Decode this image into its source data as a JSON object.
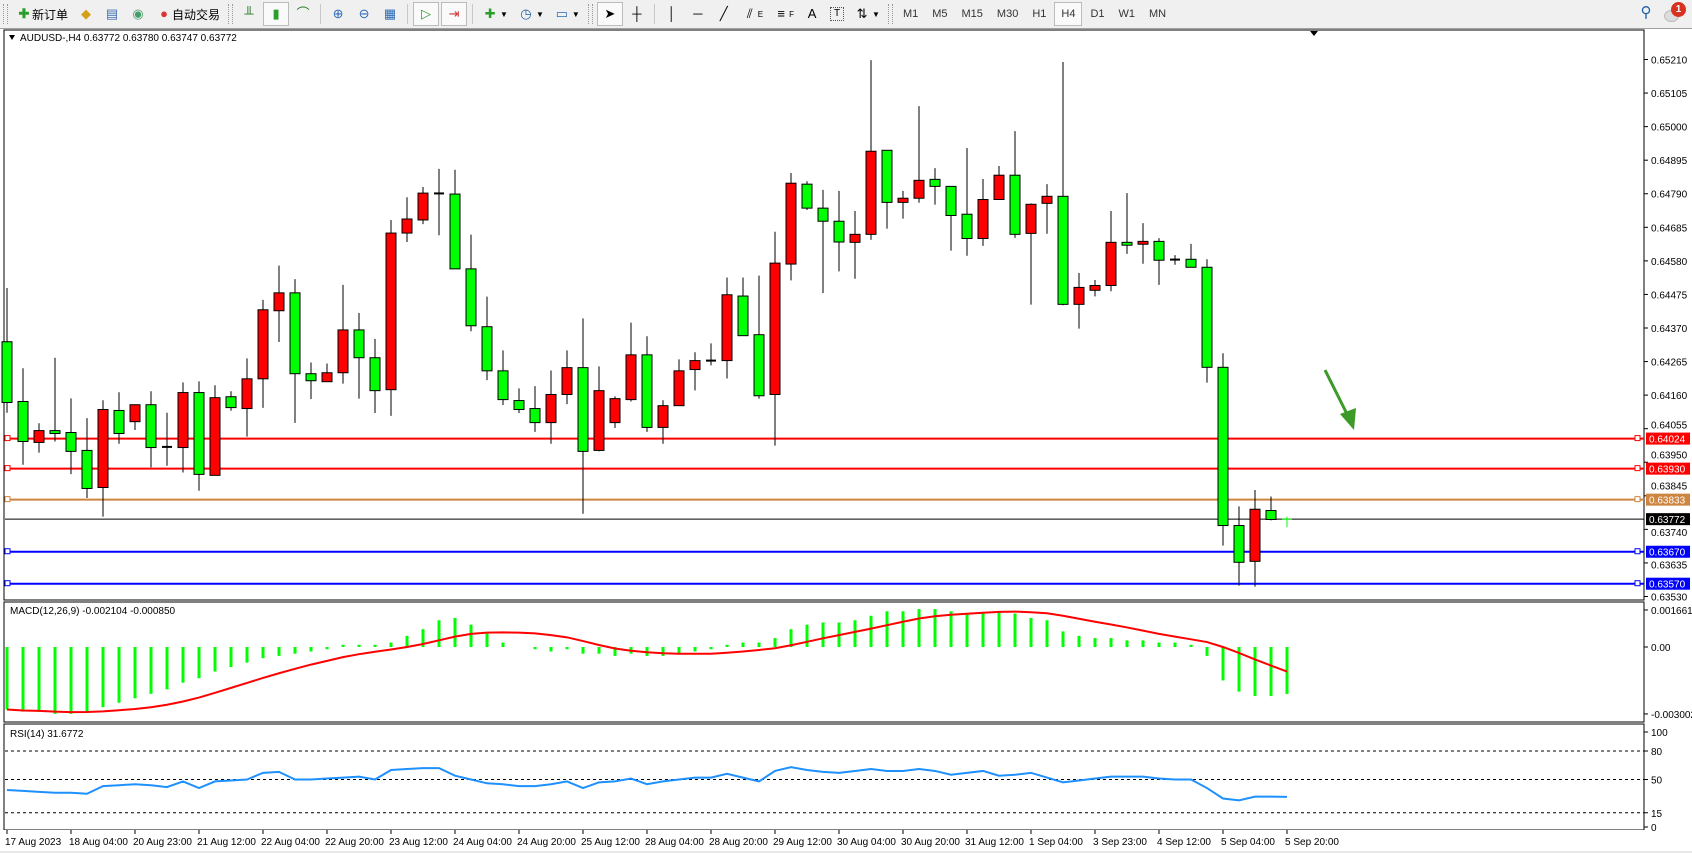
{
  "toolbar": {
    "new_order": "新订单",
    "auto_trading": "自动交易",
    "timeframes": [
      "M1",
      "M5",
      "M15",
      "M30",
      "H1",
      "H4",
      "D1",
      "W1",
      "MN"
    ],
    "active_timeframe": "H4",
    "notifications_count": "1",
    "icons": [
      "new-order-icon",
      "market-watch-icon",
      "navigator-icon",
      "signals-icon",
      "auto-trading-icon",
      "bar-chart-icon",
      "candlestick-icon",
      "line-chart-icon",
      "zoom-in-icon",
      "zoom-out-icon",
      "tile-windows-icon",
      "auto-scroll-icon",
      "chart-shift-icon",
      "indicators-icon",
      "periods-icon",
      "templates-icon",
      "cursor-icon",
      "crosshair-icon",
      "vertical-line-icon",
      "horizontal-line-icon",
      "trendline-icon",
      "equidistant-channel-icon",
      "fibonacci-icon",
      "text-icon",
      "text-label-icon",
      "arrows-icon",
      "search-icon",
      "chat-icon"
    ],
    "text_tool": "A",
    "fib_sub": "F",
    "channel_sub": "E"
  },
  "chart": {
    "header": "AUDUSD-,H4  0.63772 0.63780 0.63747 0.63772",
    "colors": {
      "bull": "#ff0000",
      "bear": "#00ff00",
      "macd_hist": "#00ff00",
      "signal": "#ff0000",
      "rsi": "#1e90ff",
      "arrow": "#3c9a28"
    },
    "price_ticks": [
      "0.65210",
      "0.65105",
      "0.65000",
      "0.64895",
      "0.64790",
      "0.64685",
      "0.64580",
      "0.64475",
      "0.64370",
      "0.64265",
      "0.64160",
      "0.64055",
      "0.63950",
      "0.63845",
      "0.63740",
      "0.63635",
      "0.63530"
    ],
    "levels": [
      {
        "price": "0.64024",
        "color": "#ff0000"
      },
      {
        "price": "0.63930",
        "color": "#ff0000"
      },
      {
        "price": "0.63833",
        "color": "#cd853f"
      },
      {
        "price": "0.63772",
        "color": "#000000"
      },
      {
        "price": "0.63670",
        "color": "#0000ff"
      },
      {
        "price": "0.63570",
        "color": "#0000ff"
      }
    ],
    "time_labels": [
      "17 Aug 2023",
      "18 Aug 04:00",
      "20 Aug 23:00",
      "21 Aug 12:00",
      "22 Aug 04:00",
      "22 Aug 20:00",
      "23 Aug 12:00",
      "24 Aug 04:00",
      "24 Aug 20:00",
      "25 Aug 12:00",
      "28 Aug 04:00",
      "28 Aug 20:00",
      "29 Aug 12:00",
      "30 Aug 04:00",
      "30 Aug 20:00",
      "31 Aug 12:00",
      "1 Sep 04:00",
      "3 Sep 23:00",
      "4 Sep 12:00",
      "5 Sep 04:00",
      "5 Sep 20:00"
    ],
    "macd_label": "MACD(12,26,9) -0.002104 -0.000850",
    "macd_ticks": [
      "0.001661",
      "0.00",
      "-0.003002"
    ],
    "rsi_label": "RSI(14) 31.6772",
    "rsi_ticks": [
      "100",
      "80",
      "50",
      "15",
      "0"
    ]
  },
  "chart_data": {
    "type": "candlestick",
    "symbol": "AUDUSD-",
    "timeframe": "H4",
    "ylim": [
      0.6353,
      0.6524
    ],
    "ohlc": [
      [
        0.64327,
        0.64495,
        0.64105,
        0.64137
      ],
      [
        0.6414,
        0.64244,
        0.63942,
        0.64015
      ],
      [
        0.64012,
        0.64072,
        0.6398,
        0.64049
      ],
      [
        0.64049,
        0.64277,
        0.64015,
        0.6404
      ],
      [
        0.64043,
        0.6415,
        0.63913,
        0.63984
      ],
      [
        0.63987,
        0.64088,
        0.63838,
        0.63868
      ],
      [
        0.63871,
        0.64144,
        0.6378,
        0.64115
      ],
      [
        0.64112,
        0.64169,
        0.64008,
        0.6404
      ],
      [
        0.64077,
        0.6413,
        0.64051,
        0.6413
      ],
      [
        0.6413,
        0.64172,
        0.63934,
        0.63996
      ],
      [
        0.63998,
        0.64105,
        0.63939,
        0.63998
      ],
      [
        0.63996,
        0.642,
        0.63918,
        0.64168
      ],
      [
        0.64168,
        0.64203,
        0.63861,
        0.63912
      ],
      [
        0.63909,
        0.64191,
        0.63909,
        0.64152
      ],
      [
        0.64155,
        0.64172,
        0.64111,
        0.64121
      ],
      [
        0.64118,
        0.64275,
        0.6403,
        0.64211
      ],
      [
        0.64211,
        0.64458,
        0.6412,
        0.64427
      ],
      [
        0.64424,
        0.64565,
        0.64326,
        0.6448
      ],
      [
        0.6448,
        0.64523,
        0.64073,
        0.64227
      ],
      [
        0.64227,
        0.64262,
        0.64148,
        0.64205
      ],
      [
        0.64202,
        0.64259,
        0.64202,
        0.6423
      ],
      [
        0.6423,
        0.64505,
        0.64196,
        0.64364
      ],
      [
        0.64364,
        0.64417,
        0.64149,
        0.64277
      ],
      [
        0.64277,
        0.64336,
        0.64104,
        0.64174
      ],
      [
        0.64177,
        0.64708,
        0.64095,
        0.64667
      ],
      [
        0.64667,
        0.64779,
        0.64639,
        0.64711
      ],
      [
        0.64708,
        0.64811,
        0.64695,
        0.64792
      ],
      [
        0.64791,
        0.64868,
        0.6466,
        0.64791
      ],
      [
        0.64789,
        0.64865,
        0.64555,
        0.64555
      ],
      [
        0.64555,
        0.64662,
        0.6436,
        0.64377
      ],
      [
        0.64374,
        0.64468,
        0.64207,
        0.64236
      ],
      [
        0.64236,
        0.643,
        0.64129,
        0.64146
      ],
      [
        0.64143,
        0.64181,
        0.64104,
        0.64115
      ],
      [
        0.64118,
        0.64188,
        0.64045,
        0.64074
      ],
      [
        0.64074,
        0.64237,
        0.64008,
        0.64162
      ],
      [
        0.64162,
        0.643,
        0.64132,
        0.64246
      ],
      [
        0.64246,
        0.644,
        0.63789,
        0.63984
      ],
      [
        0.63987,
        0.6425,
        0.63984,
        0.64174
      ],
      [
        0.64074,
        0.64156,
        0.64057,
        0.64149
      ],
      [
        0.64146,
        0.64387,
        0.6414,
        0.64286
      ],
      [
        0.64286,
        0.64344,
        0.64045,
        0.64059
      ],
      [
        0.64059,
        0.64144,
        0.64008,
        0.64127
      ],
      [
        0.64127,
        0.64272,
        0.64127,
        0.64236
      ],
      [
        0.6424,
        0.64294,
        0.64175,
        0.64268
      ],
      [
        0.64268,
        0.64322,
        0.64253,
        0.64268
      ],
      [
        0.64268,
        0.64528,
        0.64212,
        0.64474
      ],
      [
        0.6447,
        0.64528,
        0.64346,
        0.64346
      ],
      [
        0.64349,
        0.64534,
        0.64149,
        0.64158
      ],
      [
        0.64162,
        0.64671,
        0.64002,
        0.64573
      ],
      [
        0.6457,
        0.64855,
        0.64519,
        0.64823
      ],
      [
        0.6482,
        0.64829,
        0.64739,
        0.64745
      ],
      [
        0.64745,
        0.64802,
        0.64479,
        0.64704
      ],
      [
        0.64704,
        0.64799,
        0.64547,
        0.64639
      ],
      [
        0.64638,
        0.64736,
        0.64524,
        0.64663
      ],
      [
        0.64663,
        0.65208,
        0.64646,
        0.64923
      ],
      [
        0.64926,
        0.64926,
        0.64681,
        0.64763
      ],
      [
        0.64763,
        0.64799,
        0.64712,
        0.64776
      ],
      [
        0.64776,
        0.65064,
        0.64762,
        0.64832
      ],
      [
        0.64835,
        0.6487,
        0.64756,
        0.64813
      ],
      [
        0.64813,
        0.64813,
        0.64612,
        0.64722
      ],
      [
        0.64726,
        0.64933,
        0.64596,
        0.6465
      ],
      [
        0.6465,
        0.64836,
        0.64627,
        0.64772
      ],
      [
        0.64772,
        0.64877,
        0.64772,
        0.64848
      ],
      [
        0.64848,
        0.64986,
        0.64652,
        0.64663
      ],
      [
        0.64666,
        0.6476,
        0.64443,
        0.64757
      ],
      [
        0.6476,
        0.6482,
        0.64665,
        0.64782
      ],
      [
        0.64782,
        0.65202,
        0.64441,
        0.64444
      ],
      [
        0.64444,
        0.64542,
        0.64368,
        0.64497
      ],
      [
        0.64488,
        0.6452,
        0.64469,
        0.64503
      ],
      [
        0.64503,
        0.64736,
        0.64485,
        0.64638
      ],
      [
        0.64638,
        0.64792,
        0.64602,
        0.64629
      ],
      [
        0.64632,
        0.64698,
        0.64571,
        0.64641
      ],
      [
        0.64641,
        0.64651,
        0.64505,
        0.64582
      ],
      [
        0.64584,
        0.64598,
        0.64568,
        0.64584
      ],
      [
        0.64585,
        0.64633,
        0.6456,
        0.6456
      ],
      [
        0.6456,
        0.64585,
        0.64199,
        0.64247
      ],
      [
        0.64247,
        0.64291,
        0.63689,
        0.63752
      ],
      [
        0.63752,
        0.63812,
        0.63564,
        0.63637
      ],
      [
        0.6364,
        0.63863,
        0.63561,
        0.63803
      ],
      [
        0.63799,
        0.63843,
        0.63768,
        0.63771
      ],
      [
        0.63772,
        0.6378,
        0.63747,
        0.63772
      ]
    ],
    "macd": {
      "ylim": [
        -0.003002,
        0.001661
      ],
      "main": [
        -0.0028,
        -0.0029,
        -0.0029,
        -0.003,
        -0.003,
        -0.0029,
        -0.0027,
        -0.0025,
        -0.0023,
        -0.0021,
        -0.0019,
        -0.0016,
        -0.0014,
        -0.0011,
        -0.0009,
        -0.0007,
        -0.0005,
        -0.0004,
        -0.0003,
        -0.0002,
        -0.0001,
        0.0001,
        0.0001,
        0.0001,
        0.0002,
        0.0005,
        0.0008,
        0.0012,
        0.0013,
        0.001,
        0.0006,
        0.0002,
        0.0,
        -0.0001,
        -0.0002,
        -0.0001,
        -0.0003,
        -0.0003,
        -0.0004,
        -0.0003,
        -0.0004,
        -0.0004,
        -0.0003,
        -0.0002,
        -0.0001,
        0.0001,
        0.0002,
        0.0002,
        0.0004,
        0.0008,
        0.001,
        0.0011,
        0.0011,
        0.0012,
        0.0014,
        0.0016,
        0.0016,
        0.0017,
        0.0017,
        0.0016,
        0.0015,
        0.0015,
        0.0016,
        0.0015,
        0.0013,
        0.0012,
        0.0007,
        0.0005,
        0.0004,
        0.0004,
        0.0003,
        0.0003,
        0.0002,
        0.0002,
        0.0001,
        -0.0004,
        -0.0015,
        -0.002,
        -0.0022,
        -0.0022,
        -0.002104
      ],
      "signal_period": 9
    },
    "rsi": {
      "ylim": [
        0,
        100
      ],
      "levels": [
        80,
        50,
        15
      ],
      "values": [
        39,
        38,
        37,
        36,
        36,
        35,
        43,
        44,
        45,
        44,
        42,
        48,
        41,
        48,
        49,
        50,
        57,
        58,
        50,
        50,
        51,
        52,
        53,
        50,
        60,
        61,
        62,
        62,
        54,
        50,
        46,
        45,
        43,
        43,
        45,
        48,
        41,
        47,
        48,
        51,
        45,
        48,
        50,
        52,
        52,
        56,
        52,
        48,
        59,
        63,
        60,
        58,
        57,
        59,
        61,
        59,
        59,
        61,
        59,
        55,
        57,
        59,
        54,
        55,
        57,
        52,
        47,
        49,
        51,
        53,
        53,
        53,
        51,
        50,
        50,
        41,
        30,
        28,
        32,
        32,
        31.68
      ]
    }
  }
}
